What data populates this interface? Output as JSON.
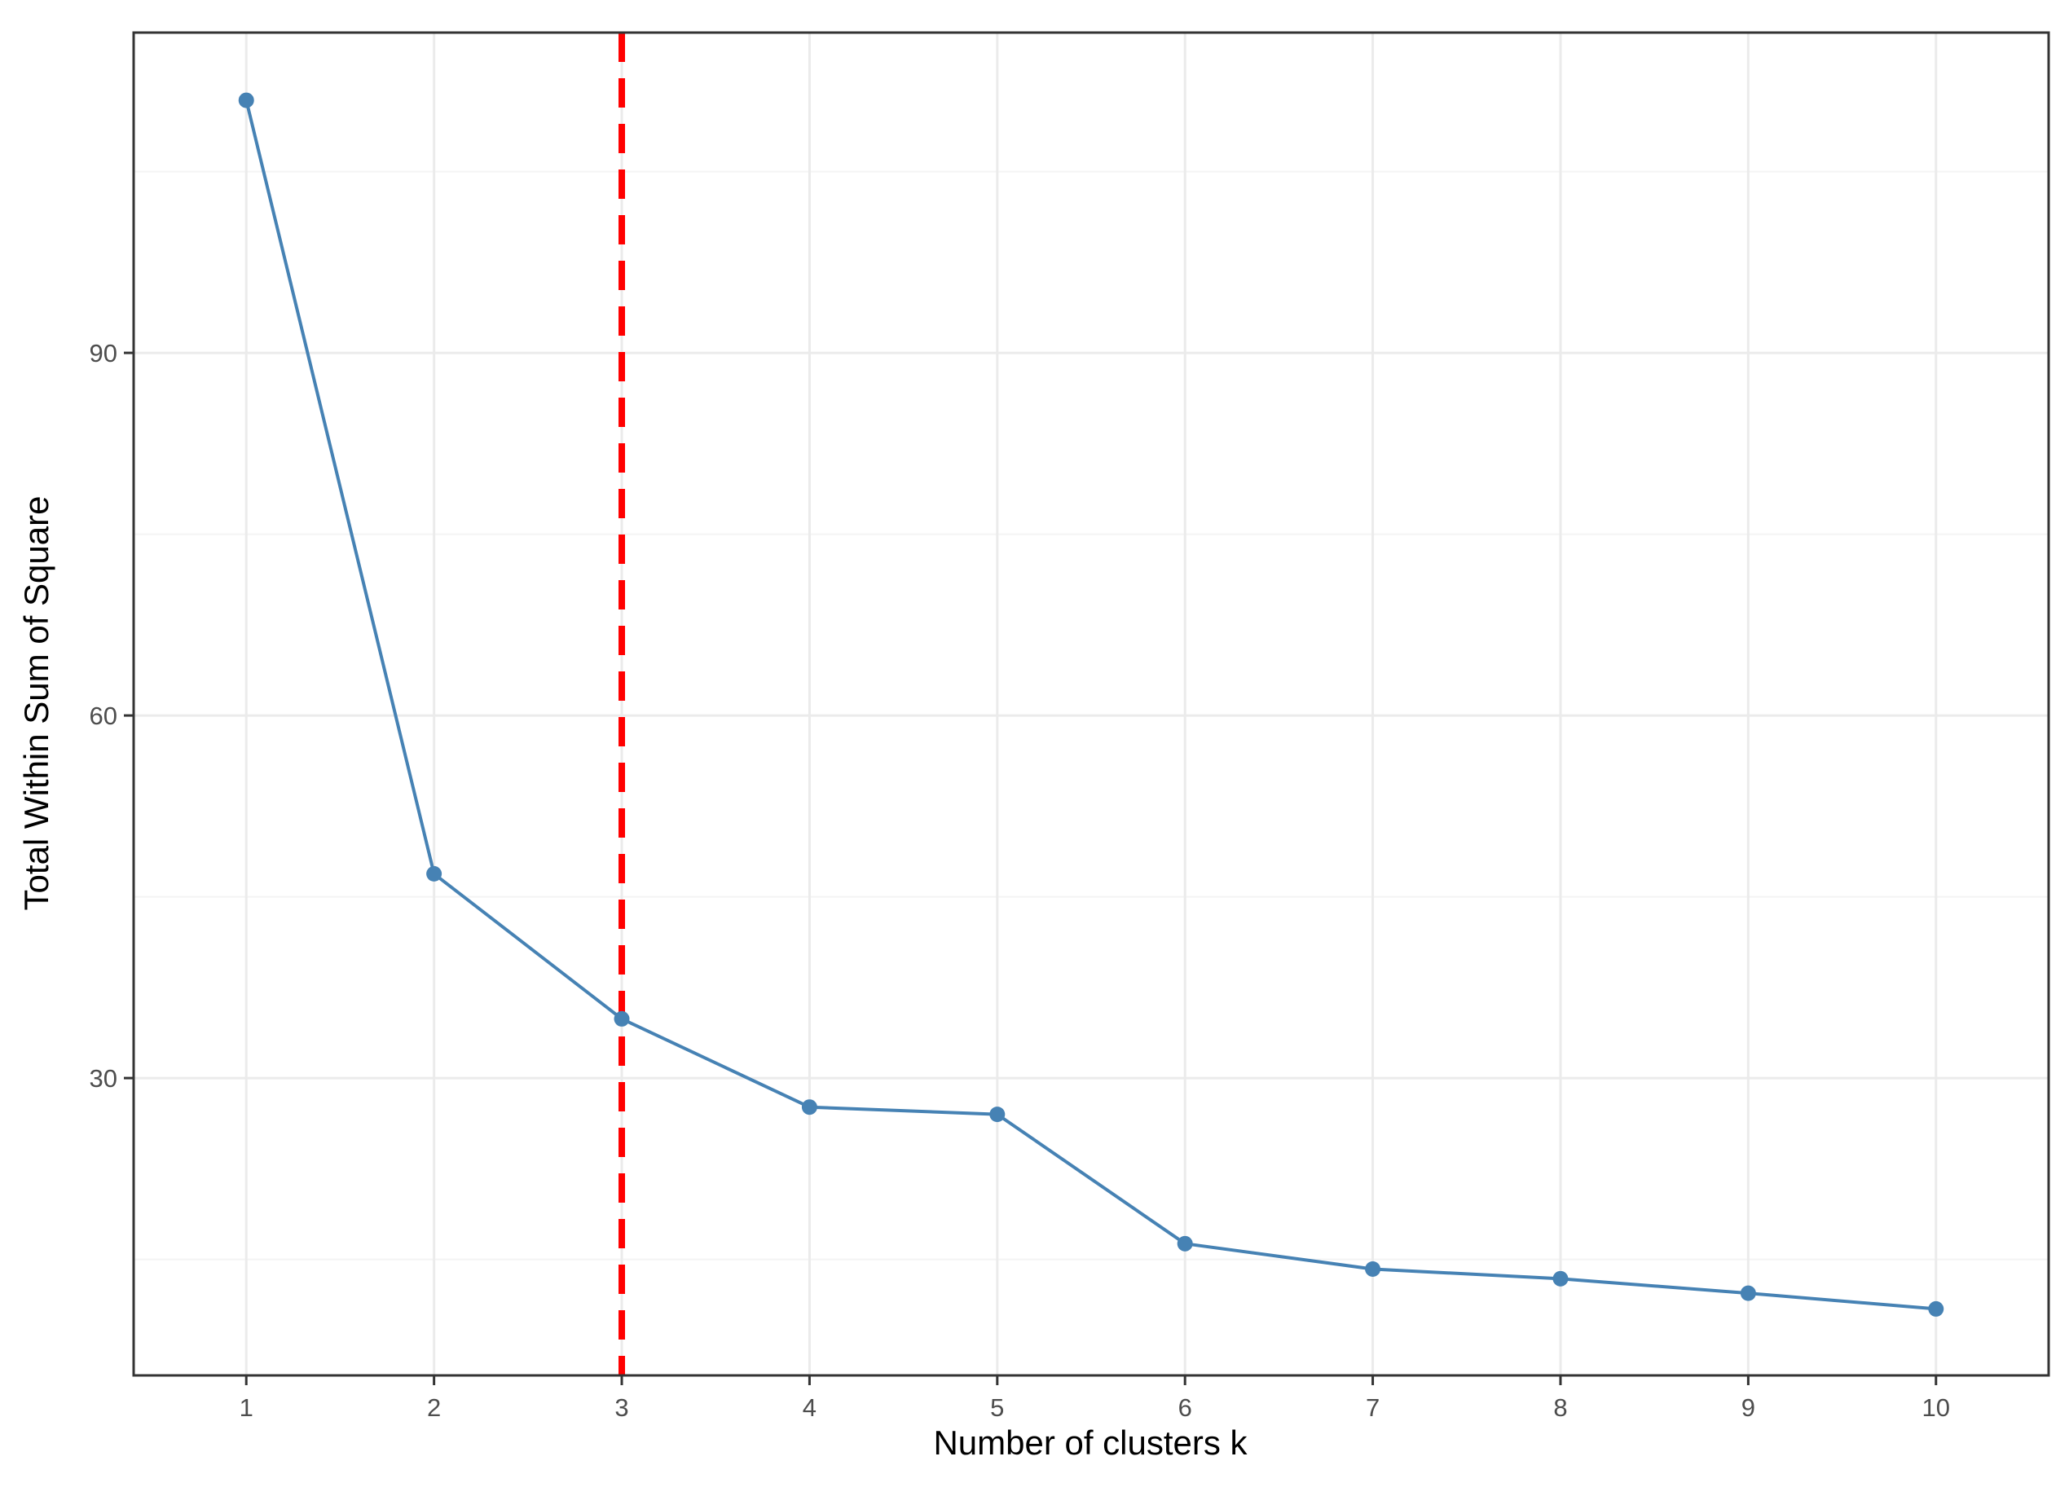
{
  "chart_data": {
    "type": "line",
    "title": "",
    "xlabel": "Number of clusters k",
    "ylabel": "Total Within Sum of Square",
    "x": [
      1,
      2,
      3,
      4,
      5,
      6,
      7,
      8,
      9,
      10
    ],
    "series": [
      {
        "values": [
          110.9,
          46.9,
          34.9,
          27.6,
          27.0,
          16.3,
          14.2,
          13.4,
          12.2,
          10.9
        ],
        "color": "#4682B4"
      }
    ],
    "x_ticks": [
      "1",
      "2",
      "3",
      "4",
      "5",
      "6",
      "7",
      "8",
      "9",
      "10"
    ],
    "y_ticks": [
      30,
      60,
      90
    ],
    "xlim": [
      0.4,
      10.6
    ],
    "ylim": [
      5.4,
      116.5
    ],
    "grid": true,
    "reference_line": {
      "axis": "x",
      "value": 3,
      "style": "dashed",
      "color": "#FF0000"
    },
    "colors": {
      "panel_border": "#333333",
      "grid_major": "#ebebeb",
      "grid_minor": "#f4f4f4",
      "tick_text": "#4d4d4d",
      "axis_title": "#000000"
    }
  }
}
